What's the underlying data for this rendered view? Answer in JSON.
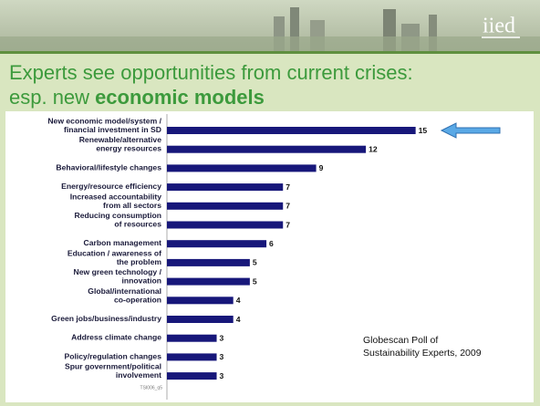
{
  "logo": "iied",
  "chart_data": {
    "type": "bar",
    "orientation": "horizontal",
    "title": {
      "line1": "Experts see opportunities from current crises:",
      "line2": "esp. new",
      "line2_bold": "economic models"
    },
    "categories": [
      [
        "New economic model/system /",
        "financial investment in SD"
      ],
      [
        "Renewable/alternative",
        "energy resources"
      ],
      [
        "Behavioral/lifestyle changes"
      ],
      [
        "Energy/resource efficiency"
      ],
      [
        "Increased accountability",
        "from all sectors"
      ],
      [
        "Reducing consumption",
        "of resources"
      ],
      [
        "Carbon management"
      ],
      [
        "Education / awareness of",
        "the problem"
      ],
      [
        "New green technology /",
        "innovation"
      ],
      [
        "Global/international",
        "co-operation"
      ],
      [
        "Green jobs/business/industry"
      ],
      [
        "Address climate change"
      ],
      [
        "Policy/regulation changes"
      ],
      [
        "Spur government/political",
        "involvement"
      ]
    ],
    "values": [
      15,
      12,
      9,
      7,
      7,
      7,
      6,
      5,
      5,
      4,
      4,
      3,
      3,
      3
    ],
    "color": "#17177a",
    "xlim": [
      0,
      17
    ],
    "annotations": [
      "Globescan Poll of",
      "Sustainability Experts, 2009"
    ],
    "footnote": "TSI006_q5"
  }
}
